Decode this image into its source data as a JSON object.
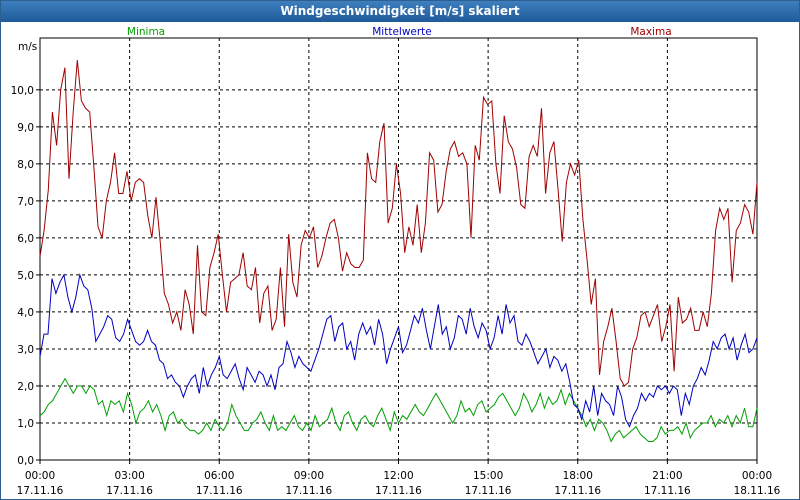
{
  "window": {
    "title": "Windgeschwindigkeit [m/s] skaliert"
  },
  "chart_data": {
    "type": "line",
    "title": "Windgeschwindigkeit [m/s] skaliert",
    "ylabel": "m/s",
    "ylim": [
      0,
      11.4
    ],
    "xlim": [
      0,
      24
    ],
    "grid": true,
    "y_ticks": [
      {
        "value": 0,
        "label": "0,0"
      },
      {
        "value": 1,
        "label": "1,0"
      },
      {
        "value": 2,
        "label": "2,0"
      },
      {
        "value": 3,
        "label": "3,0"
      },
      {
        "value": 4,
        "label": "4,0"
      },
      {
        "value": 5,
        "label": "5,0"
      },
      {
        "value": 6,
        "label": "6,0"
      },
      {
        "value": 7,
        "label": "7,0"
      },
      {
        "value": 8,
        "label": "8,0"
      },
      {
        "value": 9,
        "label": "9,0"
      },
      {
        "value": 10,
        "label": "10,0"
      }
    ],
    "x_ticks": [
      {
        "value": 0,
        "time": "00:00",
        "date": "17.11.16"
      },
      {
        "value": 3,
        "time": "03:00",
        "date": "17.11.16"
      },
      {
        "value": 6,
        "time": "06:00",
        "date": "17.11.16"
      },
      {
        "value": 9,
        "time": "09:00",
        "date": "17.11.16"
      },
      {
        "value": 12,
        "time": "12:00",
        "date": "17.11.16"
      },
      {
        "value": 15,
        "time": "15:00",
        "date": "17.11.16"
      },
      {
        "value": 18,
        "time": "18:00",
        "date": "17.11.16"
      },
      {
        "value": 21,
        "time": "21:00",
        "date": "17.11.16"
      },
      {
        "value": 24,
        "time": "00:00",
        "date": "18.11.16"
      }
    ],
    "sample_interval_hours": 0.1667,
    "series": [
      {
        "name": "Minima",
        "color": "#00a000",
        "values": [
          1.2,
          1.3,
          1.5,
          1.6,
          1.8,
          2.0,
          2.2,
          2.0,
          1.8,
          2.0,
          2.0,
          1.8,
          2.0,
          1.9,
          1.5,
          1.6,
          1.2,
          1.6,
          1.5,
          1.6,
          1.3,
          1.8,
          1.5,
          1.0,
          1.3,
          1.4,
          1.6,
          1.3,
          1.5,
          1.2,
          0.8,
          1.2,
          1.3,
          1.0,
          1.1,
          0.9,
          0.8,
          0.8,
          0.7,
          0.8,
          1.0,
          0.8,
          1.1,
          0.9,
          0.8,
          1.0,
          1.5,
          1.2,
          1.0,
          0.8,
          0.8,
          1.0,
          1.1,
          1.3,
          1.0,
          0.8,
          1.2,
          0.8,
          0.9,
          0.8,
          1.0,
          1.2,
          0.9,
          0.8,
          1.0,
          0.8,
          1.2,
          0.9,
          1.0,
          1.1,
          1.4,
          1.0,
          0.8,
          1.2,
          1.3,
          1.0,
          0.8,
          1.1,
          1.2,
          1.0,
          0.9,
          1.2,
          1.4,
          1.1,
          0.8,
          1.3,
          1.0,
          1.2,
          1.1,
          1.3,
          1.5,
          1.3,
          1.2,
          1.4,
          1.6,
          1.8,
          1.6,
          1.4,
          1.2,
          1.0,
          1.2,
          1.6,
          1.3,
          1.4,
          1.2,
          1.5,
          1.6,
          1.3,
          1.4,
          1.5,
          1.7,
          1.8,
          1.6,
          1.4,
          1.2,
          1.4,
          1.8,
          1.6,
          1.3,
          1.5,
          1.8,
          1.4,
          1.7,
          1.5,
          1.6,
          1.9,
          1.5,
          1.8,
          1.6,
          1.4,
          1.2,
          0.9,
          1.1,
          0.8,
          1.1,
          1.0,
          0.8,
          0.5,
          0.7,
          0.8,
          0.6,
          0.7,
          0.8,
          0.9,
          0.7,
          0.6,
          0.5,
          0.5,
          0.6,
          0.9,
          0.7,
          0.8,
          0.8,
          0.9,
          0.7,
          1.0,
          0.6,
          0.8,
          0.9,
          1.0,
          1.0,
          1.2,
          0.9,
          1.1,
          1.0,
          1.2,
          0.9,
          1.2,
          1.0,
          1.4,
          0.9,
          0.9,
          1.4
        ]
      },
      {
        "name": "Mittelwerte",
        "color": "#0000c0",
        "values": [
          2.8,
          3.4,
          3.4,
          4.9,
          4.5,
          4.8,
          5.0,
          4.4,
          4.0,
          4.4,
          5.0,
          4.7,
          4.6,
          4.1,
          3.2,
          3.4,
          3.6,
          3.9,
          3.8,
          3.3,
          3.2,
          3.4,
          3.8,
          3.5,
          3.2,
          3.1,
          3.2,
          3.5,
          3.2,
          3.1,
          2.7,
          2.6,
          2.2,
          2.3,
          2.1,
          2.0,
          1.7,
          2.0,
          2.2,
          2.3,
          1.8,
          2.5,
          2.0,
          2.3,
          2.5,
          2.8,
          2.3,
          2.2,
          2.4,
          2.6,
          2.2,
          1.9,
          2.5,
          2.3,
          2.1,
          2.4,
          2.3,
          2.0,
          2.3,
          1.9,
          2.5,
          2.6,
          3.2,
          2.9,
          2.5,
          2.8,
          2.6,
          2.5,
          2.4,
          2.7,
          3.0,
          3.4,
          3.8,
          3.9,
          3.2,
          3.6,
          3.7,
          3.0,
          3.2,
          2.7,
          3.4,
          3.7,
          3.4,
          3.6,
          3.1,
          3.8,
          3.4,
          2.6,
          3.0,
          3.3,
          3.6,
          2.9,
          3.1,
          3.5,
          3.9,
          3.7,
          4.1,
          3.5,
          3.0,
          3.6,
          4.2,
          3.4,
          3.6,
          3.0,
          3.3,
          3.9,
          3.8,
          3.4,
          4.1,
          3.6,
          3.3,
          3.7,
          3.5,
          3.0,
          3.3,
          3.9,
          3.4,
          4.2,
          3.7,
          3.9,
          3.2,
          3.1,
          3.4,
          3.2,
          2.9,
          2.6,
          2.8,
          3.0,
          2.5,
          2.8,
          2.7,
          2.4,
          2.6,
          2.1,
          1.5,
          1.4,
          1.1,
          1.6,
          1.3,
          2.0,
          1.2,
          1.8,
          1.6,
          1.5,
          1.2,
          2.0,
          1.7,
          1.1,
          0.9,
          1.2,
          1.4,
          1.8,
          1.6,
          1.8,
          1.7,
          2.0,
          1.9,
          2.0,
          1.8,
          2.0,
          1.9,
          1.2,
          1.8,
          1.5,
          2.0,
          2.2,
          2.5,
          2.3,
          2.7,
          3.2,
          3.0,
          3.3,
          3.4,
          3.0,
          3.3,
          2.7,
          3.1,
          3.4,
          2.9,
          3.0,
          3.3
        ]
      },
      {
        "name": "Maxima",
        "color": "#a00000",
        "values": [
          5.5,
          6.2,
          7.3,
          9.4,
          8.5,
          10.0,
          10.6,
          7.6,
          9.4,
          10.8,
          9.7,
          9.5,
          9.4,
          7.9,
          6.3,
          6.0,
          7.0,
          7.5,
          8.3,
          7.2,
          7.2,
          7.8,
          7.0,
          7.5,
          7.6,
          7.5,
          6.6,
          6.0,
          7.1,
          5.9,
          4.5,
          4.2,
          3.7,
          4.0,
          3.5,
          4.6,
          4.2,
          3.4,
          5.8,
          4.0,
          3.9,
          5.2,
          5.6,
          6.1,
          5.0,
          4.0,
          4.8,
          4.9,
          5.0,
          5.6,
          4.7,
          4.6,
          5.2,
          3.7,
          4.5,
          4.7,
          3.5,
          3.8,
          5.2,
          3.6,
          6.1,
          4.8,
          4.4,
          5.8,
          6.2,
          6.0,
          6.3,
          5.2,
          5.5,
          6.0,
          6.4,
          6.5,
          6.0,
          5.1,
          5.6,
          5.3,
          5.2,
          5.2,
          5.4,
          8.3,
          7.6,
          7.5,
          8.6,
          9.1,
          6.4,
          6.8,
          8.0,
          7.2,
          5.6,
          6.3,
          5.8,
          6.9,
          5.6,
          6.4,
          8.3,
          8.1,
          6.7,
          6.9,
          7.8,
          8.4,
          8.6,
          8.2,
          8.3,
          8.0,
          6.0,
          8.5,
          8.1,
          9.8,
          9.6,
          9.7,
          8.0,
          7.2,
          9.3,
          8.6,
          8.4,
          7.9,
          6.9,
          6.8,
          8.2,
          8.5,
          8.2,
          9.5,
          7.2,
          8.3,
          8.6,
          7.3,
          5.9,
          7.5,
          8.0,
          7.7,
          8.1,
          6.5,
          5.4,
          4.2,
          4.9,
          2.3,
          3.2,
          3.6,
          4.1,
          3.2,
          2.2,
          2.0,
          2.1,
          3.0,
          3.3,
          3.9,
          4.0,
          3.6,
          3.9,
          4.2,
          3.2,
          3.6,
          4.2,
          2.4,
          4.4,
          3.7,
          3.8,
          4.1,
          3.5,
          3.5,
          4.0,
          3.6,
          4.5,
          6.2,
          6.8,
          6.5,
          6.8,
          4.8,
          6.2,
          6.4,
          6.9,
          6.7,
          6.1,
          7.5
        ]
      }
    ]
  }
}
